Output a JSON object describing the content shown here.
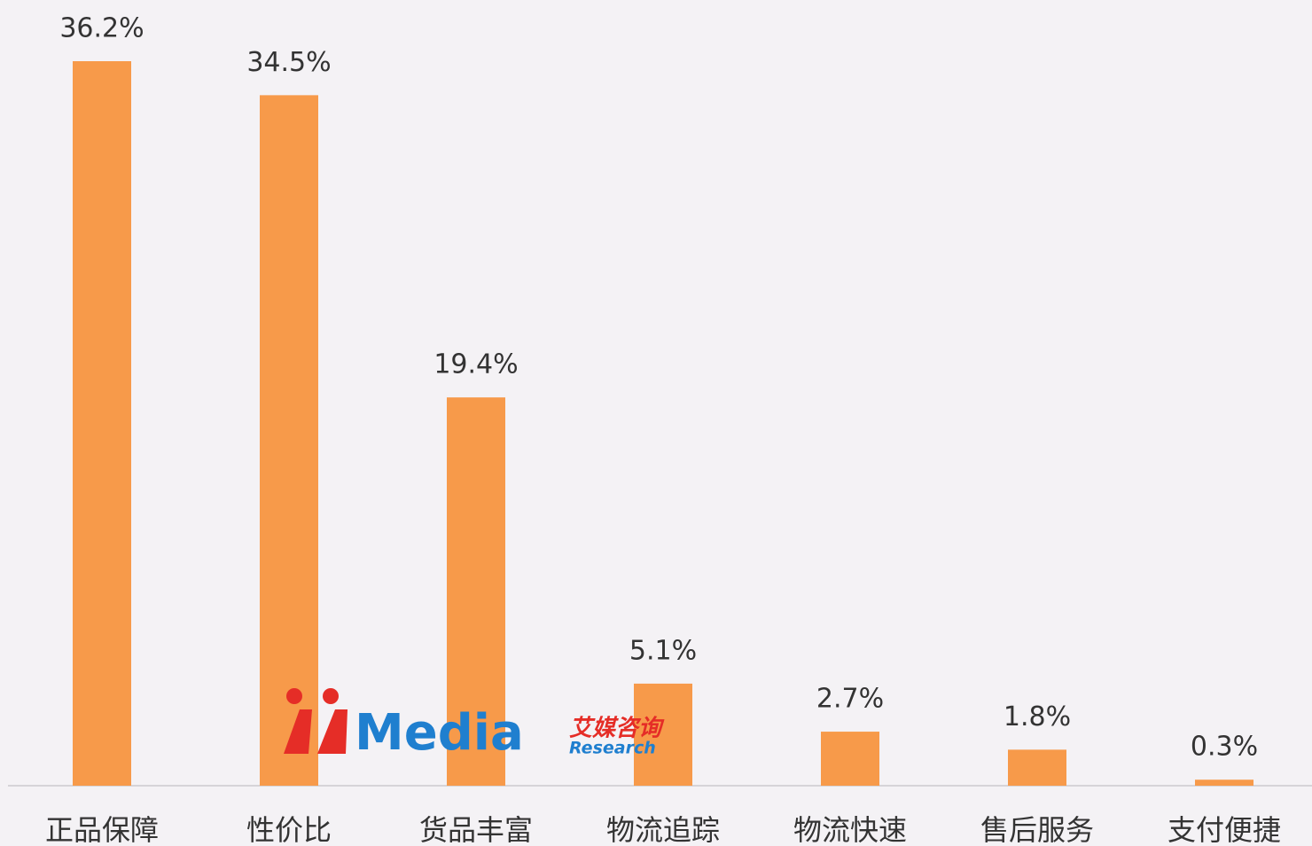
{
  "chart_data": {
    "type": "bar",
    "categories": [
      "正品保障",
      "性价比",
      "货品丰富",
      "物流追踪",
      "物流快速",
      "售后服务",
      "支付便捷"
    ],
    "values": [
      36.2,
      34.5,
      19.4,
      5.1,
      2.7,
      1.8,
      0.3
    ],
    "value_labels": [
      "36.2%",
      "34.5%",
      "19.4%",
      "5.1%",
      "2.7%",
      "1.8%",
      "0.3%"
    ],
    "color": "#f79a4a"
  },
  "watermark": {
    "brand": "Media",
    "cn": "艾媒咨询",
    "en": "Research"
  }
}
